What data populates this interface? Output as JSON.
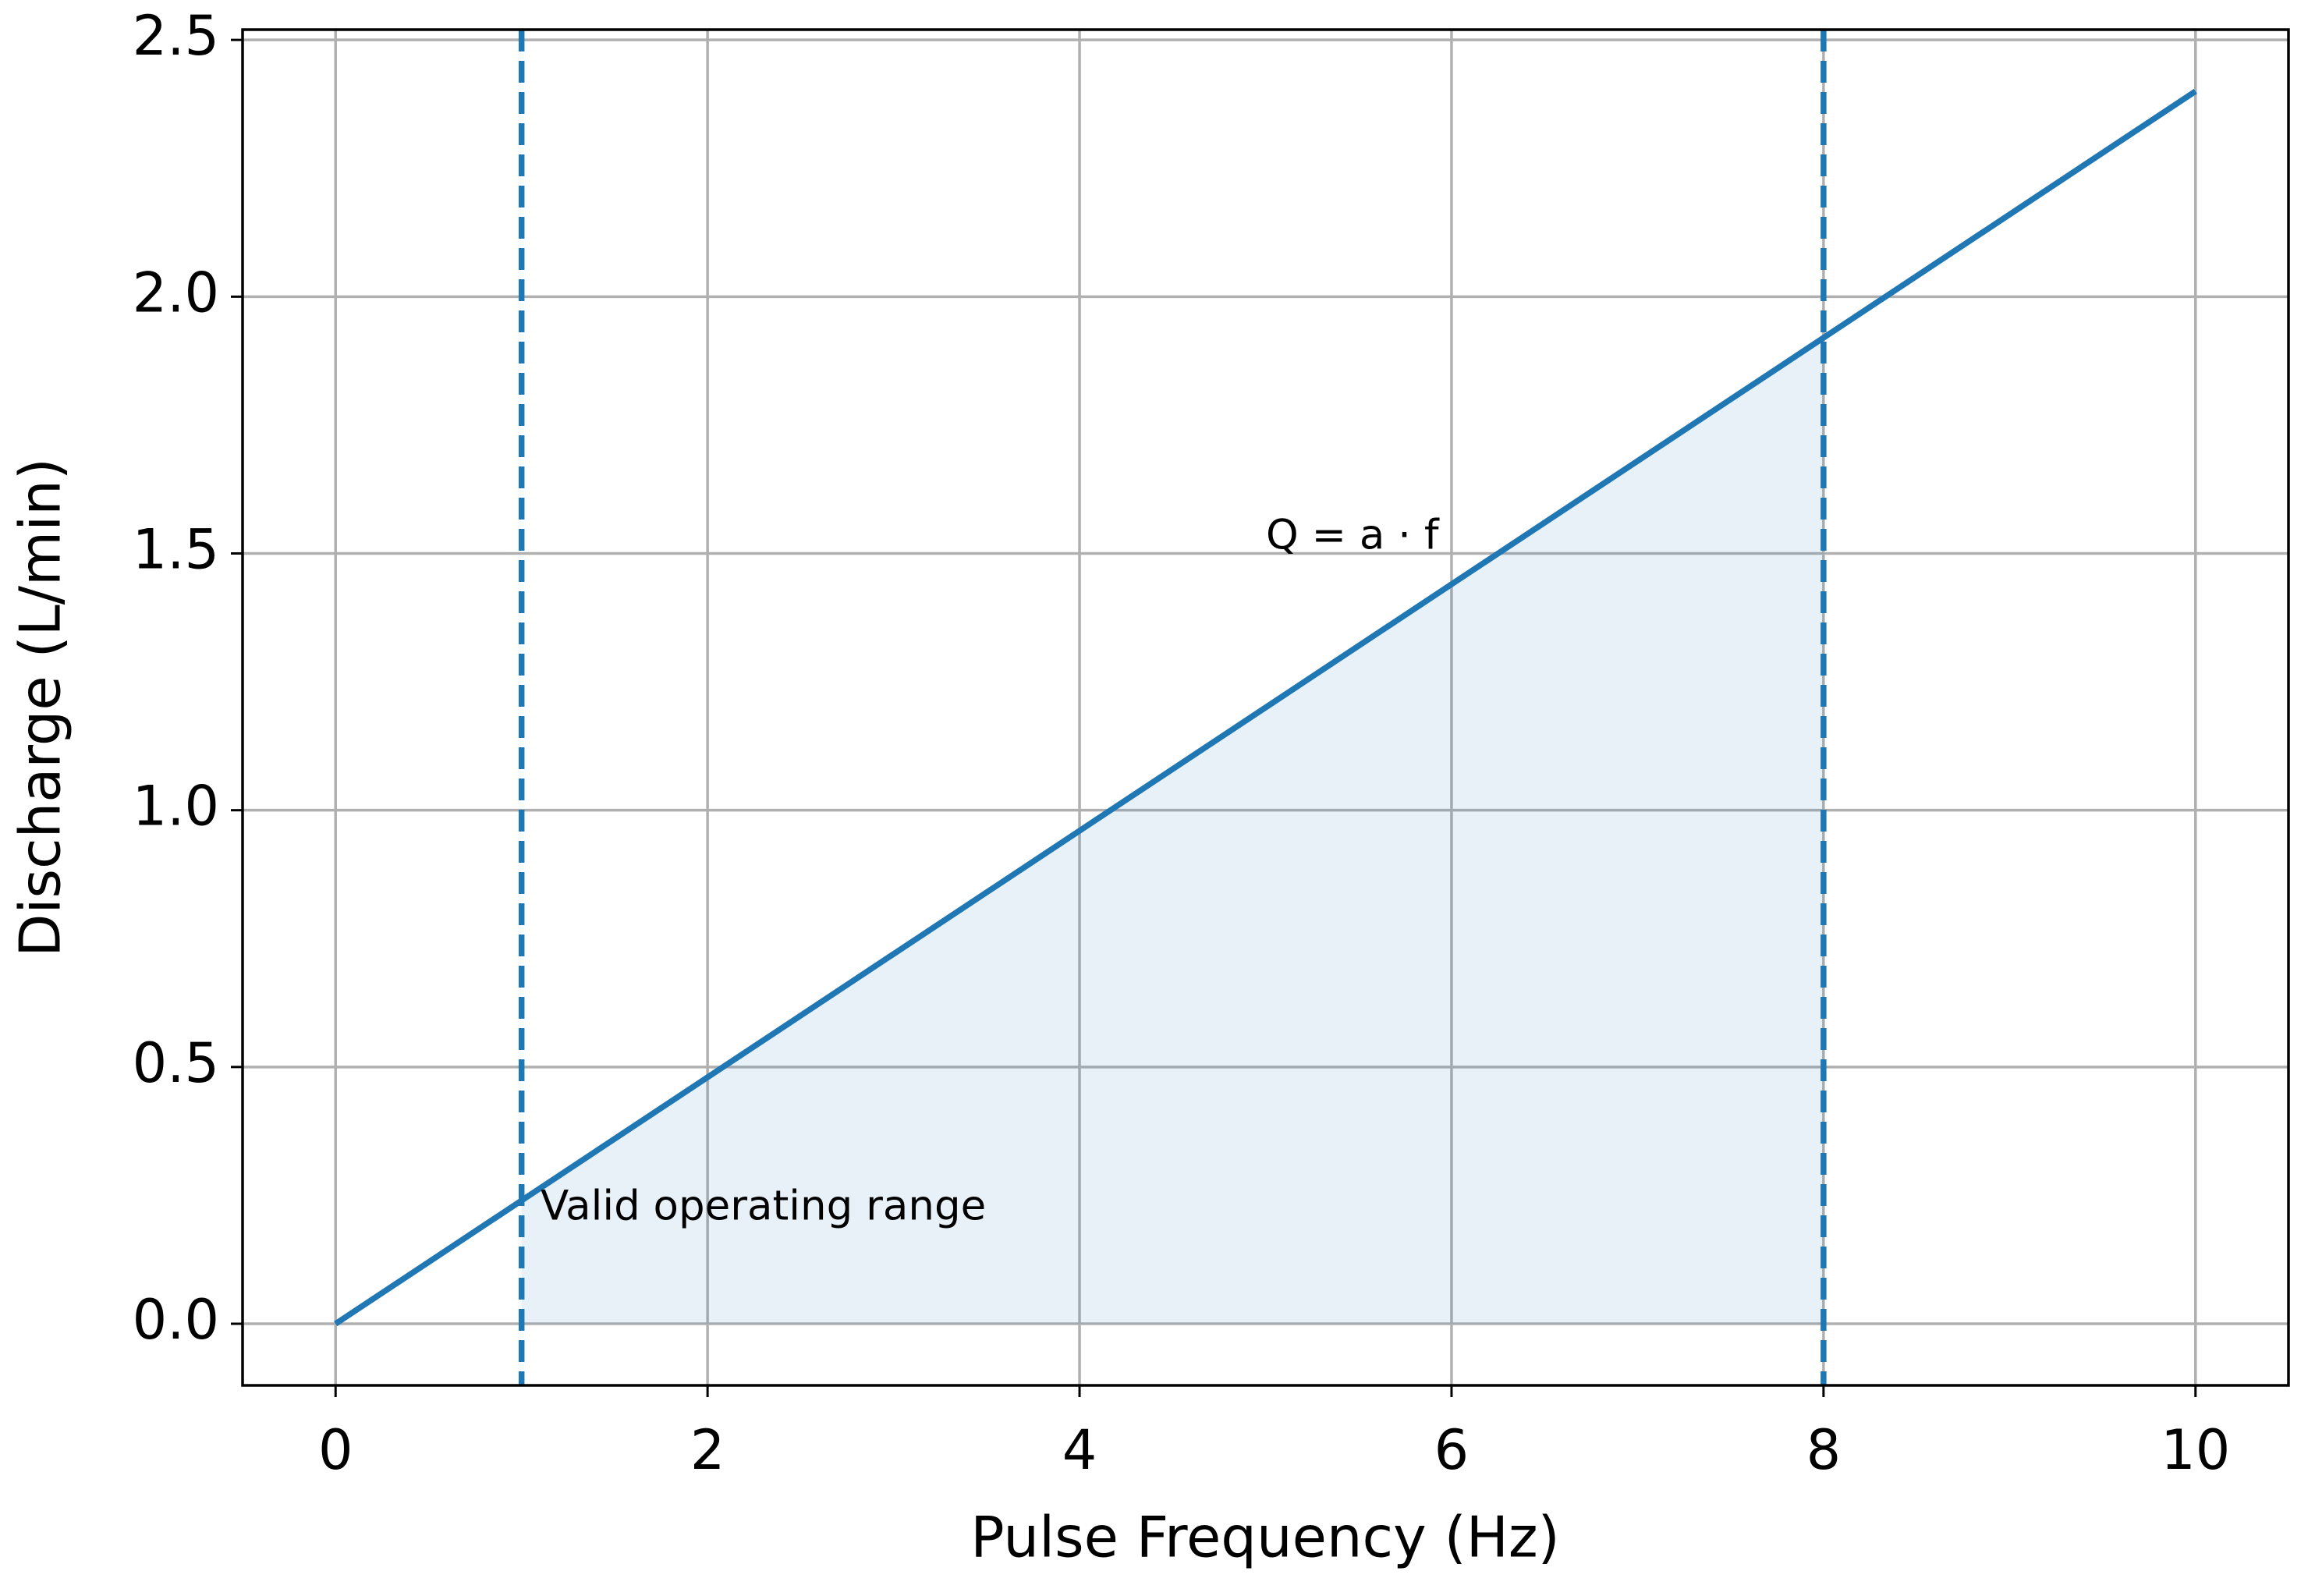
{
  "chart_data": {
    "type": "line",
    "x_label": "Pulse Frequency (Hz)",
    "y_label": "Discharge (L/min)",
    "x": [
      0,
      10
    ],
    "values": [
      0,
      2.4
    ],
    "color": "#1f77b4",
    "fill": {
      "x": [
        1,
        8
      ],
      "values": [
        0.24,
        1.92
      ]
    },
    "vlines": [
      1,
      8
    ],
    "annotations": [
      "Q = a · f",
      "Valid operating range"
    ],
    "xlim": [
      -0.5,
      10.5
    ],
    "xticks": [
      0,
      2,
      4,
      6,
      8,
      10
    ],
    "ylim": [
      -0.12,
      2.52
    ],
    "yticks": [
      {
        "value": 0,
        "label": "0.0"
      },
      {
        "value": 0.5,
        "label": "0.5"
      },
      {
        "value": 1,
        "label": "1.0"
      },
      {
        "value": 1.5,
        "label": "1.5"
      },
      {
        "value": 2,
        "label": "2.0"
      },
      {
        "value": 2.5,
        "label": "2.5"
      }
    ],
    "grid": true
  }
}
